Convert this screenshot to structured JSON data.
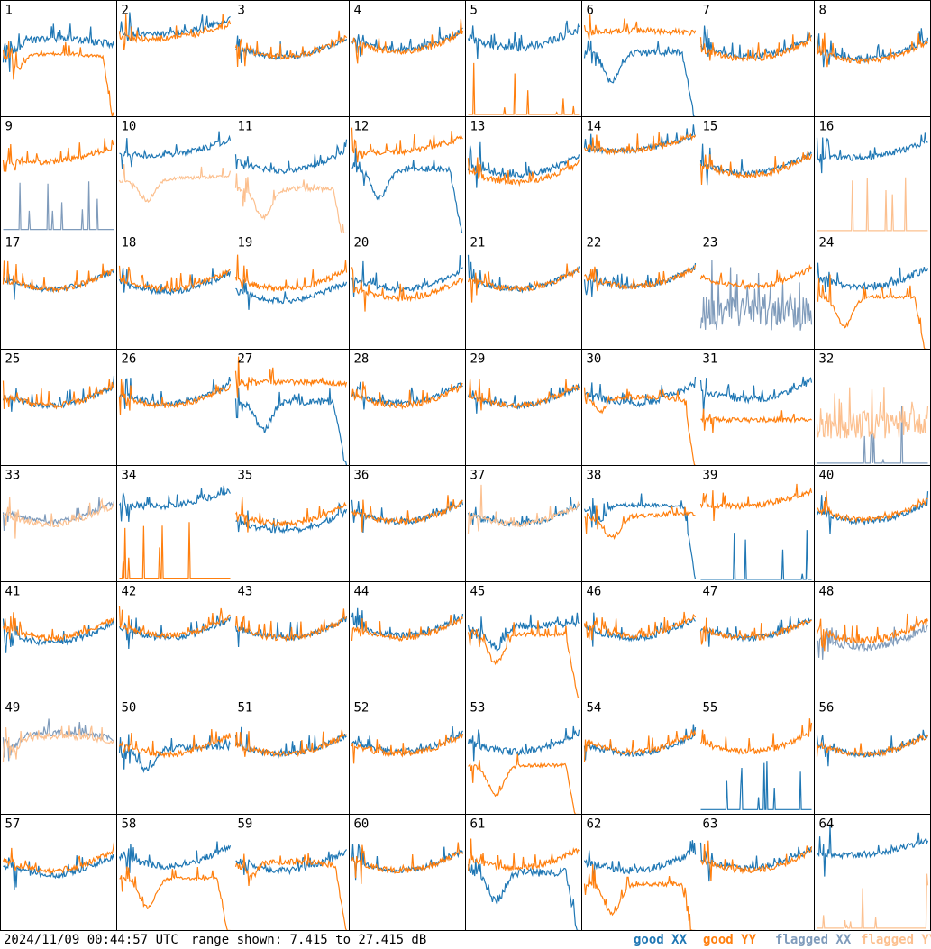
{
  "colors": {
    "good_xx": "#1f77b4",
    "good_yy": "#ff7f0e",
    "flagged_xx": "#7f9bbb",
    "flagged_yy": "#fcc08f",
    "frame": "#000000",
    "background": "#ffffff"
  },
  "footer": {
    "timestamp": "2024/11/09 00:44:57 UTC",
    "range_text": "range shown: 7.415 to 27.415 dB"
  },
  "legend": {
    "good_xx": "good XX",
    "good_yy": "good YY",
    "flagged_xx": "flagged XX",
    "flagged_yy": "flagged YY"
  },
  "chart_data": {
    "type": "line",
    "layout": "8x8 small multiples of antenna spectra",
    "ylim": [
      7.415,
      27.415
    ],
    "yunit": "dB",
    "series_names": [
      "good XX",
      "good YY",
      "flagged XX",
      "flagged YY"
    ],
    "panels": [
      {
        "id": "1",
        "xx": {
          "status": "good",
          "shape": "hump",
          "level": 0.62,
          "noise": 0.06
        },
        "yy": {
          "status": "good",
          "shape": "hump-drop",
          "level": 0.5,
          "noise": 0.03
        }
      },
      {
        "id": "2",
        "xx": {
          "status": "good",
          "shape": "rise",
          "level": 0.72,
          "noise": 0.05
        },
        "yy": {
          "status": "good",
          "shape": "rise",
          "level": 0.68,
          "noise": 0.05
        }
      },
      {
        "id": "3",
        "xx": {
          "status": "good",
          "shape": "bowl",
          "level": 0.6,
          "noise": 0.05
        },
        "yy": {
          "status": "good",
          "shape": "bowl",
          "level": 0.6,
          "noise": 0.05
        }
      },
      {
        "id": "4",
        "xx": {
          "status": "good",
          "shape": "bowl",
          "level": 0.66,
          "noise": 0.05
        },
        "yy": {
          "status": "good",
          "shape": "bowl",
          "level": 0.64,
          "noise": 0.05
        }
      },
      {
        "id": "5",
        "xx": {
          "status": "good",
          "shape": "bowl",
          "level": 0.68,
          "noise": 0.07
        },
        "yy": {
          "status": "good",
          "shape": "spikes-low",
          "level": 0.02,
          "noise": 0.0
        }
      },
      {
        "id": "6",
        "xx": {
          "status": "good",
          "shape": "dip-drop",
          "level": 0.55,
          "noise": 0.06
        },
        "yy": {
          "status": "good",
          "shape": "flat-high",
          "level": 0.72,
          "noise": 0.05
        }
      },
      {
        "id": "7",
        "xx": {
          "status": "good",
          "shape": "bowl",
          "level": 0.6,
          "noise": 0.05
        },
        "yy": {
          "status": "good",
          "shape": "bowl",
          "level": 0.58,
          "noise": 0.05
        }
      },
      {
        "id": "8",
        "xx": {
          "status": "good",
          "shape": "bowl",
          "level": 0.58,
          "noise": 0.05
        },
        "yy": {
          "status": "good",
          "shape": "bowl",
          "level": 0.56,
          "noise": 0.05
        }
      },
      {
        "id": "9",
        "xx": {
          "status": "flagged",
          "shape": "spikes-low",
          "level": 0.03,
          "noise": 0.0
        },
        "yy": {
          "status": "good",
          "shape": "rise",
          "level": 0.62,
          "noise": 0.05
        }
      },
      {
        "id": "10",
        "xx": {
          "status": "good",
          "shape": "rise",
          "level": 0.68,
          "noise": 0.05
        },
        "yy": {
          "status": "flagged",
          "shape": "dip",
          "level": 0.45,
          "noise": 0.03
        }
      },
      {
        "id": "11",
        "xx": {
          "status": "good",
          "shape": "bowl",
          "level": 0.62,
          "noise": 0.05
        },
        "yy": {
          "status": "flagged",
          "shape": "dip-drop",
          "level": 0.38,
          "noise": 0.04
        }
      },
      {
        "id": "12",
        "xx": {
          "status": "good",
          "shape": "dip-drop",
          "level": 0.55,
          "noise": 0.05
        },
        "yy": {
          "status": "good",
          "shape": "rise",
          "level": 0.7,
          "noise": 0.05
        }
      },
      {
        "id": "13",
        "xx": {
          "status": "good",
          "shape": "bowl",
          "level": 0.58,
          "noise": 0.05
        },
        "yy": {
          "status": "good",
          "shape": "bowl",
          "level": 0.52,
          "noise": 0.05
        }
      },
      {
        "id": "14",
        "xx": {
          "status": "good",
          "shape": "rise",
          "level": 0.72,
          "noise": 0.05
        },
        "yy": {
          "status": "good",
          "shape": "rise",
          "level": 0.72,
          "noise": 0.05
        }
      },
      {
        "id": "15",
        "xx": {
          "status": "good",
          "shape": "bowl",
          "level": 0.6,
          "noise": 0.05
        },
        "yy": {
          "status": "good",
          "shape": "bowl",
          "level": 0.58,
          "noise": 0.05
        }
      },
      {
        "id": "16",
        "xx": {
          "status": "good",
          "shape": "rise",
          "level": 0.66,
          "noise": 0.05
        },
        "yy": {
          "status": "flagged",
          "shape": "spikes-low",
          "level": 0.02,
          "noise": 0.0
        }
      },
      {
        "id": "17",
        "xx": {
          "status": "good",
          "shape": "bowl",
          "level": 0.6,
          "noise": 0.05
        },
        "yy": {
          "status": "good",
          "shape": "bowl",
          "level": 0.6,
          "noise": 0.05
        }
      },
      {
        "id": "18",
        "xx": {
          "status": "good",
          "shape": "bowl",
          "level": 0.58,
          "noise": 0.05
        },
        "yy": {
          "status": "good",
          "shape": "bowl",
          "level": 0.6,
          "noise": 0.05
        }
      },
      {
        "id": "19",
        "xx": {
          "status": "good",
          "shape": "bowl",
          "level": 0.5,
          "noise": 0.05
        },
        "yy": {
          "status": "good",
          "shape": "bowl",
          "level": 0.6,
          "noise": 0.05
        }
      },
      {
        "id": "20",
        "xx": {
          "status": "good",
          "shape": "bowl",
          "level": 0.6,
          "noise": 0.05
        },
        "yy": {
          "status": "good",
          "shape": "bowl",
          "level": 0.52,
          "noise": 0.05
        }
      },
      {
        "id": "21",
        "xx": {
          "status": "good",
          "shape": "bowl",
          "level": 0.6,
          "noise": 0.05
        },
        "yy": {
          "status": "good",
          "shape": "bowl",
          "level": 0.6,
          "noise": 0.05
        }
      },
      {
        "id": "22",
        "xx": {
          "status": "good",
          "shape": "bowl",
          "level": 0.62,
          "noise": 0.05
        },
        "yy": {
          "status": "good",
          "shape": "bowl",
          "level": 0.62,
          "noise": 0.05
        }
      },
      {
        "id": "23",
        "xx": {
          "status": "flagged",
          "shape": "spikes-noise",
          "level": 0.3,
          "noise": 0.15
        },
        "yy": {
          "status": "good",
          "shape": "bowl",
          "level": 0.62,
          "noise": 0.05
        }
      },
      {
        "id": "24",
        "xx": {
          "status": "good",
          "shape": "bowl",
          "level": 0.62,
          "noise": 0.06
        },
        "yy": {
          "status": "good",
          "shape": "dip-drop",
          "level": 0.45,
          "noise": 0.03
        }
      },
      {
        "id": "25",
        "xx": {
          "status": "good",
          "shape": "bowl",
          "level": 0.6,
          "noise": 0.05
        },
        "yy": {
          "status": "good",
          "shape": "bowl",
          "level": 0.6,
          "noise": 0.05
        }
      },
      {
        "id": "26",
        "xx": {
          "status": "good",
          "shape": "bowl",
          "level": 0.62,
          "noise": 0.05
        },
        "yy": {
          "status": "good",
          "shape": "bowl",
          "level": 0.6,
          "noise": 0.05
        }
      },
      {
        "id": "27",
        "xx": {
          "status": "good",
          "shape": "dip-drop",
          "level": 0.55,
          "noise": 0.06
        },
        "yy": {
          "status": "good",
          "shape": "flat-high",
          "level": 0.7,
          "noise": 0.05
        }
      },
      {
        "id": "28",
        "xx": {
          "status": "good",
          "shape": "bowl",
          "level": 0.62,
          "noise": 0.05
        },
        "yy": {
          "status": "good",
          "shape": "bowl",
          "level": 0.6,
          "noise": 0.05
        }
      },
      {
        "id": "29",
        "xx": {
          "status": "good",
          "shape": "bowl",
          "level": 0.6,
          "noise": 0.05
        },
        "yy": {
          "status": "good",
          "shape": "bowl",
          "level": 0.6,
          "noise": 0.05
        }
      },
      {
        "id": "30",
        "xx": {
          "status": "good",
          "shape": "bowl",
          "level": 0.62,
          "noise": 0.06
        },
        "yy": {
          "status": "good",
          "shape": "hump-drop",
          "level": 0.55,
          "noise": 0.04
        }
      },
      {
        "id": "31",
        "xx": {
          "status": "good",
          "shape": "bowl",
          "level": 0.65,
          "noise": 0.06
        },
        "yy": {
          "status": "good",
          "shape": "flat-low",
          "level": 0.4,
          "noise": 0.04
        }
      },
      {
        "id": "32",
        "xx": {
          "status": "flagged",
          "shape": "spikes-low",
          "level": 0.02,
          "noise": 0.0
        },
        "yy": {
          "status": "flagged",
          "shape": "spikes-noise",
          "level": 0.35,
          "noise": 0.12
        }
      },
      {
        "id": "33",
        "xx": {
          "status": "flagged",
          "shape": "bowl",
          "level": 0.6,
          "noise": 0.05
        },
        "yy": {
          "status": "flagged",
          "shape": "bowl",
          "level": 0.58,
          "noise": 0.05
        }
      },
      {
        "id": "34",
        "xx": {
          "status": "good",
          "shape": "rise",
          "level": 0.66,
          "noise": 0.05
        },
        "yy": {
          "status": "good",
          "shape": "spikes-low",
          "level": 0.03,
          "noise": 0.0
        }
      },
      {
        "id": "35",
        "xx": {
          "status": "good",
          "shape": "bowl",
          "level": 0.52,
          "noise": 0.05
        },
        "yy": {
          "status": "good",
          "shape": "bowl",
          "level": 0.58,
          "noise": 0.05
        }
      },
      {
        "id": "36",
        "xx": {
          "status": "good",
          "shape": "bowl",
          "level": 0.6,
          "noise": 0.05
        },
        "yy": {
          "status": "good",
          "shape": "bowl",
          "level": 0.6,
          "noise": 0.05
        }
      },
      {
        "id": "37",
        "xx": {
          "status": "good",
          "shape": "bowl",
          "level": 0.58,
          "noise": 0.05
        },
        "yy": {
          "status": "flagged",
          "shape": "bowl",
          "level": 0.58,
          "noise": 0.05
        }
      },
      {
        "id": "38",
        "xx": {
          "status": "good",
          "shape": "hump-drop",
          "level": 0.62,
          "noise": 0.04
        },
        "yy": {
          "status": "good",
          "shape": "dip",
          "level": 0.55,
          "noise": 0.04
        }
      },
      {
        "id": "39",
        "xx": {
          "status": "good",
          "shape": "spikes-low",
          "level": 0.02,
          "noise": 0.0
        },
        "yy": {
          "status": "good",
          "shape": "rise",
          "level": 0.66,
          "noise": 0.05
        }
      },
      {
        "id": "40",
        "xx": {
          "status": "good",
          "shape": "bowl",
          "level": 0.6,
          "noise": 0.05
        },
        "yy": {
          "status": "good",
          "shape": "bowl",
          "level": 0.62,
          "noise": 0.05
        }
      },
      {
        "id": "41",
        "xx": {
          "status": "good",
          "shape": "bowl",
          "level": 0.56,
          "noise": 0.05
        },
        "yy": {
          "status": "good",
          "shape": "bowl",
          "level": 0.6,
          "noise": 0.05
        }
      },
      {
        "id": "42",
        "xx": {
          "status": "good",
          "shape": "bowl",
          "level": 0.6,
          "noise": 0.05
        },
        "yy": {
          "status": "good",
          "shape": "bowl",
          "level": 0.62,
          "noise": 0.05
        }
      },
      {
        "id": "43",
        "xx": {
          "status": "good",
          "shape": "bowl",
          "level": 0.6,
          "noise": 0.05
        },
        "yy": {
          "status": "good",
          "shape": "bowl",
          "level": 0.6,
          "noise": 0.05
        }
      },
      {
        "id": "44",
        "xx": {
          "status": "good",
          "shape": "bowl",
          "level": 0.62,
          "noise": 0.05
        },
        "yy": {
          "status": "good",
          "shape": "bowl",
          "level": 0.6,
          "noise": 0.05
        }
      },
      {
        "id": "45",
        "xx": {
          "status": "good",
          "shape": "dip",
          "level": 0.6,
          "noise": 0.06
        },
        "yy": {
          "status": "good",
          "shape": "dip-drop",
          "level": 0.55,
          "noise": 0.04
        }
      },
      {
        "id": "46",
        "xx": {
          "status": "good",
          "shape": "bowl",
          "level": 0.6,
          "noise": 0.05
        },
        "yy": {
          "status": "good",
          "shape": "bowl",
          "level": 0.62,
          "noise": 0.05
        }
      },
      {
        "id": "47",
        "xx": {
          "status": "good",
          "shape": "bowl",
          "level": 0.6,
          "noise": 0.05
        },
        "yy": {
          "status": "good",
          "shape": "bowl",
          "level": 0.6,
          "noise": 0.05
        }
      },
      {
        "id": "48",
        "xx": {
          "status": "flagged",
          "shape": "bowl",
          "level": 0.52,
          "noise": 0.06
        },
        "yy": {
          "status": "good",
          "shape": "bowl",
          "level": 0.58,
          "noise": 0.06
        }
      },
      {
        "id": "49",
        "xx": {
          "status": "flagged",
          "shape": "hump",
          "level": 0.65,
          "noise": 0.05
        },
        "yy": {
          "status": "flagged",
          "shape": "hump",
          "level": 0.62,
          "noise": 0.05
        }
      },
      {
        "id": "50",
        "xx": {
          "status": "good",
          "shape": "dip",
          "level": 0.55,
          "noise": 0.06
        },
        "yy": {
          "status": "good",
          "shape": "bowl",
          "level": 0.6,
          "noise": 0.05
        }
      },
      {
        "id": "51",
        "xx": {
          "status": "good",
          "shape": "bowl",
          "level": 0.6,
          "noise": 0.05
        },
        "yy": {
          "status": "good",
          "shape": "bowl",
          "level": 0.6,
          "noise": 0.05
        }
      },
      {
        "id": "52",
        "xx": {
          "status": "good",
          "shape": "bowl",
          "level": 0.62,
          "noise": 0.05
        },
        "yy": {
          "status": "good",
          "shape": "bowl",
          "level": 0.6,
          "noise": 0.05
        }
      },
      {
        "id": "53",
        "xx": {
          "status": "good",
          "shape": "bowl",
          "level": 0.62,
          "noise": 0.06
        },
        "yy": {
          "status": "good",
          "shape": "dip-drop",
          "level": 0.42,
          "noise": 0.03
        }
      },
      {
        "id": "54",
        "xx": {
          "status": "good",
          "shape": "bowl",
          "level": 0.6,
          "noise": 0.05
        },
        "yy": {
          "status": "good",
          "shape": "bowl",
          "level": 0.62,
          "noise": 0.05
        }
      },
      {
        "id": "55",
        "xx": {
          "status": "good",
          "shape": "spikes-low",
          "level": 0.04,
          "noise": 0.0
        },
        "yy": {
          "status": "good",
          "shape": "bowl",
          "level": 0.62,
          "noise": 0.05
        }
      },
      {
        "id": "56",
        "xx": {
          "status": "good",
          "shape": "bowl",
          "level": 0.6,
          "noise": 0.05
        },
        "yy": {
          "status": "good",
          "shape": "bowl",
          "level": 0.6,
          "noise": 0.05
        }
      },
      {
        "id": "57",
        "xx": {
          "status": "good",
          "shape": "bowl",
          "level": 0.56,
          "noise": 0.05
        },
        "yy": {
          "status": "good",
          "shape": "bowl",
          "level": 0.6,
          "noise": 0.05
        }
      },
      {
        "id": "58",
        "xx": {
          "status": "good",
          "shape": "bowl",
          "level": 0.64,
          "noise": 0.06
        },
        "yy": {
          "status": "good",
          "shape": "dip-drop",
          "level": 0.45,
          "noise": 0.03
        }
      },
      {
        "id": "59",
        "xx": {
          "status": "good",
          "shape": "bowl",
          "level": 0.6,
          "noise": 0.06
        },
        "yy": {
          "status": "good",
          "shape": "hump-drop",
          "level": 0.55,
          "noise": 0.05
        }
      },
      {
        "id": "60",
        "xx": {
          "status": "good",
          "shape": "bowl",
          "level": 0.6,
          "noise": 0.05
        },
        "yy": {
          "status": "good",
          "shape": "bowl",
          "level": 0.6,
          "noise": 0.05
        }
      },
      {
        "id": "61",
        "xx": {
          "status": "good",
          "shape": "dip-drop",
          "level": 0.5,
          "noise": 0.07
        },
        "yy": {
          "status": "good",
          "shape": "bowl",
          "level": 0.62,
          "noise": 0.05
        }
      },
      {
        "id": "62",
        "xx": {
          "status": "good",
          "shape": "bowl",
          "level": 0.6,
          "noise": 0.06
        },
        "yy": {
          "status": "good",
          "shape": "dip-drop",
          "level": 0.4,
          "noise": 0.04
        }
      },
      {
        "id": "63",
        "xx": {
          "status": "good",
          "shape": "bowl",
          "level": 0.62,
          "noise": 0.05
        },
        "yy": {
          "status": "good",
          "shape": "bowl",
          "level": 0.6,
          "noise": 0.05
        }
      },
      {
        "id": "64",
        "xx": {
          "status": "good",
          "shape": "rise",
          "level": 0.66,
          "noise": 0.05
        },
        "yy": {
          "status": "flagged",
          "shape": "spikes-low",
          "level": 0.02,
          "noise": 0.0
        }
      }
    ]
  }
}
